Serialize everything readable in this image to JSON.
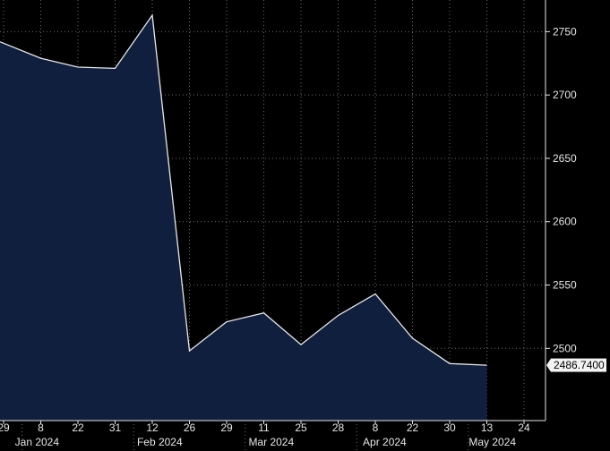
{
  "chart_data": {
    "type": "area",
    "x": [
      "29",
      "8",
      "22",
      "31",
      "12",
      "26",
      "29",
      "11",
      "25",
      "28",
      "8",
      "22",
      "30",
      "13"
    ],
    "values": [
      2742,
      2729,
      2722,
      2721,
      2763,
      2498,
      2521,
      2528,
      2503,
      2526,
      2543,
      2508,
      2488,
      2486.74
    ],
    "x_ticks": [
      "29",
      "8",
      "22",
      "31",
      "12",
      "26",
      "29",
      "11",
      "25",
      "28",
      "8",
      "22",
      "30",
      "13",
      "24"
    ],
    "months": [
      "Jan 2024",
      "Feb 2024",
      "Mar 2024",
      "Apr 2024",
      "May 2024"
    ],
    "y_ticks": [
      2500,
      2550,
      2600,
      2650,
      2700,
      2750
    ],
    "ylim": [
      2443,
      2775
    ],
    "last_value_label": "2486.7400",
    "grid": true,
    "axis_position": "right",
    "colors": {
      "background": "#000000",
      "fill": "#0f1f3d",
      "line": "#e8e8e8",
      "grid": "#6a6a6a",
      "axis": "#e6e6e6"
    }
  }
}
